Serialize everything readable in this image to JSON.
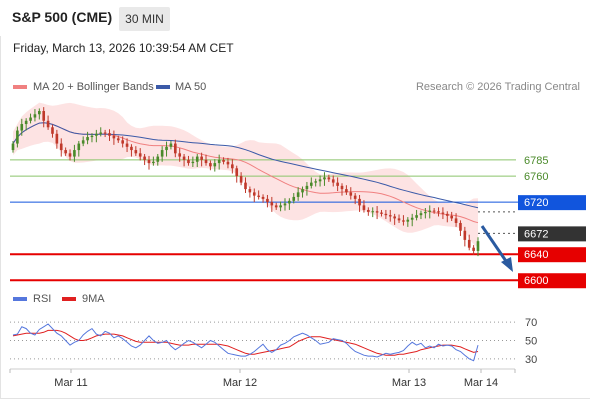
{
  "header": {
    "title": "S&P 500 (CME)",
    "interval": "30 MIN",
    "datetime": "Friday, March 13, 2026 10:39:54 AM CET"
  },
  "legend": {
    "ma20": "MA 20 + Bollinger Bands",
    "ma50": "MA 50",
    "credit": "Research © 2026 Trading Central"
  },
  "colors": {
    "ma20": "#f08080",
    "band": "#fde3e3",
    "ma50": "#3b5aa8",
    "support": "#e60000",
    "resistance_blue": "#1155dd",
    "target_green": "#8ac46a",
    "pivot": "#333333",
    "arrow": "#2a5aa0",
    "rsi": "#5577dd",
    "rsi_ma": "#e02020",
    "candle_up": "#4a8a2a",
    "candle_down": "#c0392b"
  },
  "rsi_legend": {
    "rsi": "RSI",
    "ma": "9MA"
  },
  "chart_data": {
    "type": "candlestick",
    "price_axis": {
      "min": 6585,
      "max": 6880
    },
    "x_ticks": [
      "Mar 11",
      "Mar 12",
      "Mar 13",
      "Mar 14"
    ],
    "levels": [
      {
        "label": "6785",
        "value": 6785,
        "kind": "target"
      },
      {
        "label": "6760",
        "value": 6760,
        "kind": "target"
      },
      {
        "label": "6720",
        "value": 6720,
        "kind": "resistance"
      },
      {
        "label": "6672",
        "value": 6672,
        "kind": "pivot"
      },
      {
        "label": "6640",
        "value": 6640,
        "kind": "support"
      },
      {
        "label": "6600",
        "value": 6600,
        "kind": "support"
      }
    ],
    "close": [
      6810,
      6830,
      6840,
      6845,
      6850,
      6855,
      6860,
      6845,
      6835,
      6825,
      6810,
      6800,
      6795,
      6790,
      6800,
      6810,
      6815,
      6820,
      6822,
      6825,
      6827,
      6826,
      6822,
      6818,
      6815,
      6810,
      6805,
      6800,
      6795,
      6790,
      6785,
      6780,
      6782,
      6790,
      6800,
      6805,
      6810,
      6795,
      6790,
      6785,
      6780,
      6782,
      6790,
      6785,
      6780,
      6775,
      6780,
      6785,
      6782,
      6778,
      6772,
      6760,
      6750,
      6740,
      6735,
      6730,
      6728,
      6725,
      6720,
      6715,
      6712,
      6715,
      6718,
      6722,
      6728,
      6735,
      6740,
      6745,
      6750,
      6752,
      6755,
      6758,
      6755,
      6750,
      6745,
      6740,
      6735,
      6730,
      6725,
      6715,
      6708,
      6705,
      6706,
      6704,
      6702,
      6700,
      6698,
      6695,
      6692,
      6690,
      6693,
      6696,
      6700,
      6703,
      6705,
      6707,
      6706,
      6704,
      6702,
      6699,
      6695,
      6688,
      6676,
      6662,
      6650,
      6645,
      6660
    ],
    "rsi_axis": {
      "min": 20,
      "max": 80,
      "ticks": [
        70,
        50,
        30
      ]
    },
    "rsi": [
      56,
      57,
      65,
      63,
      58,
      56,
      62,
      65,
      68,
      63,
      58,
      55,
      50,
      45,
      48,
      50,
      56,
      60,
      63,
      57,
      55,
      60,
      58,
      53,
      55,
      52,
      48,
      44,
      42,
      45,
      50,
      55,
      50,
      47,
      48,
      50,
      44,
      40,
      43,
      47,
      50,
      48,
      45,
      42,
      46,
      50,
      48,
      44,
      40,
      36,
      35,
      34,
      33,
      33,
      35,
      38,
      42,
      46,
      40,
      37,
      40,
      45,
      47,
      50,
      54,
      56,
      58,
      56,
      53,
      50,
      46,
      47,
      48,
      52,
      51,
      50,
      47,
      42,
      38,
      36,
      34,
      33,
      33,
      32,
      34,
      36,
      35,
      36,
      37,
      39,
      44,
      48,
      45,
      47,
      42,
      44,
      42,
      46,
      44,
      45,
      44,
      40,
      38,
      34,
      30,
      28,
      45
    ],
    "rsi_ma": [
      55,
      56,
      57,
      58,
      58,
      58,
      58,
      59,
      61,
      61,
      61,
      60,
      58,
      55,
      52,
      50,
      50,
      51,
      53,
      55,
      56,
      57,
      57,
      57,
      56,
      55,
      53,
      51,
      49,
      48,
      48,
      48,
      48,
      48,
      48,
      48,
      47,
      46,
      45,
      45,
      45,
      46,
      46,
      46,
      46,
      46,
      46,
      46,
      45,
      44,
      42,
      40,
      38,
      36,
      35,
      35,
      36,
      37,
      38,
      39,
      40,
      41,
      42,
      43,
      46,
      49,
      51,
      53,
      54,
      54,
      54,
      53,
      52,
      51,
      50,
      49,
      48,
      47,
      46,
      44,
      42,
      40,
      38,
      36,
      35,
      34,
      34,
      34,
      35,
      35,
      36,
      37,
      38,
      40,
      41,
      42,
      43,
      44,
      45,
      45,
      45,
      44,
      43,
      41,
      39,
      37,
      38
    ]
  }
}
